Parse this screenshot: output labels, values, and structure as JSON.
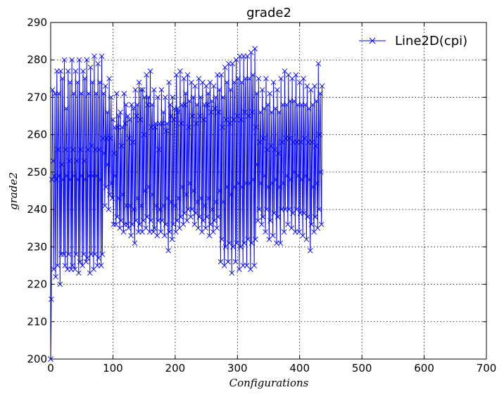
{
  "chart_data": {
    "type": "line",
    "title": "grade2",
    "xlabel": "Configurations",
    "ylabel": "grade2",
    "xlim": [
      0,
      700
    ],
    "ylim": [
      200,
      290
    ],
    "x_ticks": [
      0,
      100,
      200,
      300,
      400,
      500,
      600,
      700
    ],
    "y_ticks": [
      200,
      210,
      220,
      230,
      240,
      250,
      260,
      270,
      280,
      290
    ],
    "x_tick_labels": [
      "0",
      "100",
      "200",
      "300",
      "400",
      "500",
      "600",
      "700"
    ],
    "y_tick_labels": [
      "200",
      "210",
      "220",
      "230",
      "240",
      "250",
      "260",
      "270",
      "280",
      "290"
    ],
    "grid": true,
    "legend_position": "top-right",
    "series": [
      {
        "name": "Line2D(cpi)",
        "color": "#0000ff",
        "marker": "x",
        "x_start": 0,
        "x_step": 1,
        "values": [
          200,
          216,
          248,
          272,
          253,
          224,
          249,
          271,
          222,
          248,
          277,
          225,
          256,
          271,
          249,
          220,
          277,
          228,
          252,
          275,
          248,
          228,
          280,
          225,
          256,
          267,
          249,
          224,
          277,
          228,
          253,
          274,
          248,
          224,
          280,
          225,
          256,
          271,
          249,
          224,
          277,
          228,
          253,
          274,
          248,
          223,
          280,
          226,
          256,
          271,
          249,
          225,
          277,
          228,
          253,
          275,
          248,
          226,
          280,
          227,
          256,
          271,
          249,
          223,
          278,
          228,
          257,
          274,
          249,
          224,
          281,
          228,
          256,
          271,
          249,
          225,
          279,
          227,
          256,
          274,
          248,
          225,
          281,
          228,
          259,
          271,
          255,
          241,
          273,
          246,
          259,
          266,
          252,
          240,
          275,
          244,
          259,
          270,
          247,
          243,
          264,
          236,
          255,
          262,
          249,
          236,
          271,
          238,
          262,
          265,
          243,
          235,
          266,
          237,
          257,
          262,
          244,
          234,
          271,
          236,
          263,
          268,
          241,
          236,
          265,
          235,
          259,
          264,
          241,
          233,
          268,
          236,
          258,
          267,
          240,
          231,
          272,
          237,
          265,
          268,
          243,
          234,
          274,
          236,
          264,
          272,
          241,
          234,
          272,
          237,
          260,
          270,
          245,
          235,
          276,
          238,
          268,
          270,
          246,
          234,
          277,
          237,
          262,
          268,
          244,
          234,
          272,
          235,
          262,
          263,
          241,
          233,
          270,
          237,
          256,
          263,
          240,
          234,
          272,
          237,
          263,
          266,
          241,
          233,
          270,
          236,
          261,
          263,
          243,
          229,
          274,
          234,
          268,
          265,
          242,
          232,
          270,
          236,
          264,
          267,
          241,
          234,
          276,
          237,
          267,
          266,
          243,
          235,
          277,
          238,
          263,
          268,
          246,
          236,
          275,
          239,
          268,
          271,
          244,
          237,
          276,
          240,
          262,
          269,
          247,
          238,
          274,
          240,
          265,
          270,
          245,
          236,
          273,
          239,
          263,
          268,
          242,
          235,
          275,
          238,
          265,
          270,
          243,
          234,
          274,
          237,
          264,
          268,
          241,
          235,
          273,
          238,
          268,
          271,
          243,
          233,
          274,
          236,
          266,
          269,
          240,
          234,
          273,
          237,
          267,
          270,
          242,
          235,
          276,
          238,
          266,
          272,
          245,
          226,
          276,
          232,
          262,
          270,
          242,
          225,
          278,
          230,
          264,
          274,
          246,
          226,
          279,
          231,
          263,
          272,
          244,
          223,
          279,
          230,
          264,
          274,
          246,
          226,
          280,
          231,
          265,
          275,
          247,
          224,
          281,
          230,
          264,
          274,
          246,
          225,
          281,
          231,
          266,
          275,
          247,
          225,
          281,
          232,
          265,
          275,
          247,
          224,
          282,
          231,
          266,
          276,
          248,
          225,
          283,
          232,
          262,
          271,
          252,
          237,
          275,
          240,
          258,
          266,
          247,
          236,
          272,
          238,
          259,
          267,
          249,
          234,
          275,
          240,
          256,
          268,
          246,
          232,
          271,
          237,
          257,
          266,
          247,
          233,
          274,
          239,
          256,
          267,
          248,
          231,
          272,
          238,
          255,
          266,
          246,
          231,
          275,
          240,
          258,
          268,
          247,
          234,
          277,
          240,
          259,
          268,
          249,
          236,
          276,
          240,
          259,
          269,
          248,
          235,
          275,
          239,
          258,
          269,
          250,
          234,
          276,
          240,
          258,
          268,
          249,
          234,
          274,
          239,
          258,
          268,
          248,
          233,
          275,
          239,
          259,
          268,
          249,
          232,
          273,
          238,
          258,
          267,
          248,
          229,
          272,
          236,
          258,
          268,
          246,
          234,
          273,
          238,
          257,
          269,
          247,
          235,
          279,
          240,
          260,
          271,
          250,
          236,
          273
        ]
      }
    ]
  }
}
